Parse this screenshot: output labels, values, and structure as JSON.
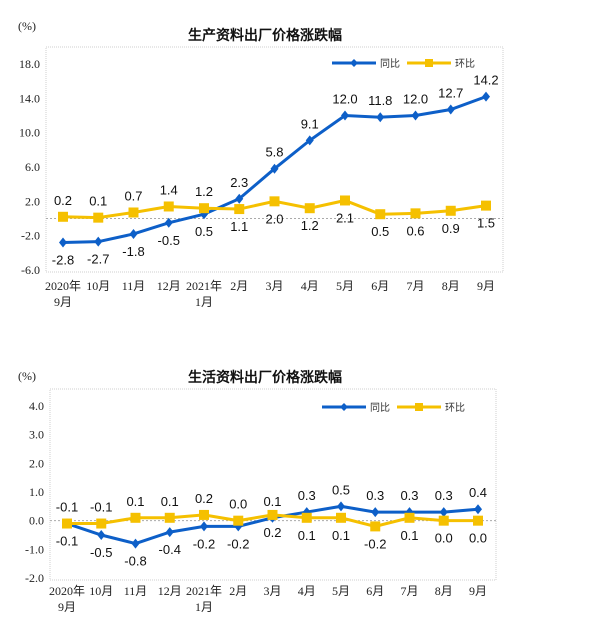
{
  "chart_data": [
    {
      "type": "line",
      "title": "生产资料出厂价格涨跌幅",
      "ylabel": "(%)",
      "categories": [
        [
          "2020年",
          "9月"
        ],
        [
          "10月"
        ],
        [
          "11月"
        ],
        [
          "12月"
        ],
        [
          "2021年",
          "1月"
        ],
        [
          "2月"
        ],
        [
          "3月"
        ],
        [
          "4月"
        ],
        [
          "5月"
        ],
        [
          "6月"
        ],
        [
          "7月"
        ],
        [
          "8月"
        ],
        [
          "9月"
        ]
      ],
      "yticks": [
        "18.0",
        "14.0",
        "10.0",
        "6.0",
        "2.0",
        "-2.0",
        "-6.0"
      ],
      "ylim": [
        -6,
        18
      ],
      "legend": "top-right",
      "series": [
        {
          "name": "同比",
          "color": "#0d5fc8",
          "marker": "diamond",
          "labels": [
            "-2.8",
            "-2.7",
            "-1.8",
            "-0.5",
            "0.5",
            "2.3",
            "5.8",
            "9.1",
            "12.0",
            "11.8",
            "12.0",
            "12.7",
            "14.2"
          ],
          "values": [
            -2.8,
            -2.7,
            -1.8,
            -0.5,
            0.5,
            2.3,
            5.8,
            9.1,
            12.0,
            11.8,
            12.0,
            12.7,
            14.2
          ]
        },
        {
          "name": "环比",
          "color": "#f5c000",
          "marker": "square",
          "labels": [
            "0.2",
            "0.1",
            "0.7",
            "1.4",
            "1.2",
            "1.1",
            "2.0",
            "1.2",
            "2.1",
            "0.5",
            "0.6",
            "0.9",
            "1.5"
          ],
          "values": [
            0.2,
            0.1,
            0.7,
            1.4,
            1.2,
            1.1,
            2.0,
            1.2,
            2.1,
            0.5,
            0.6,
            0.9,
            1.5
          ]
        }
      ]
    },
    {
      "type": "line",
      "title": "生活资料出厂价格涨跌幅",
      "ylabel": "(%)",
      "categories": [
        [
          "2020年",
          "9月"
        ],
        [
          "10月"
        ],
        [
          "11月"
        ],
        [
          "12月"
        ],
        [
          "2021年",
          "1月"
        ],
        [
          "2月"
        ],
        [
          "3月"
        ],
        [
          "4月"
        ],
        [
          "5月"
        ],
        [
          "6月"
        ],
        [
          "7月"
        ],
        [
          "8月"
        ],
        [
          "9月"
        ]
      ],
      "yticks": [
        "4.0",
        "3.0",
        "2.0",
        "1.0",
        "0.0",
        "-1.0",
        "-2.0"
      ],
      "ylim": [
        -2,
        4
      ],
      "legend": "top-right",
      "series": [
        {
          "name": "同比",
          "color": "#0d5fc8",
          "marker": "diamond",
          "labels": [
            "-0.1",
            "-0.5",
            "-0.8",
            "-0.4",
            "-0.2",
            "-0.2",
            "0.1",
            "0.3",
            "0.5",
            "0.3",
            "0.3",
            "0.3",
            "0.4"
          ],
          "values": [
            -0.1,
            -0.5,
            -0.8,
            -0.4,
            -0.2,
            -0.2,
            0.1,
            0.3,
            0.5,
            0.3,
            0.3,
            0.3,
            0.4
          ]
        },
        {
          "name": "环比",
          "color": "#f5c000",
          "marker": "square",
          "labels": [
            "-0.1",
            "-0.1",
            "0.1",
            "0.1",
            "0.2",
            "0.0",
            "0.2",
            "0.1",
            "0.1",
            "-0.2",
            "0.1",
            "0.0",
            "0.0"
          ],
          "values": [
            -0.1,
            -0.1,
            0.1,
            0.1,
            0.2,
            0.0,
            0.2,
            0.1,
            0.1,
            -0.2,
            0.1,
            0.0,
            0.0
          ]
        }
      ]
    }
  ]
}
